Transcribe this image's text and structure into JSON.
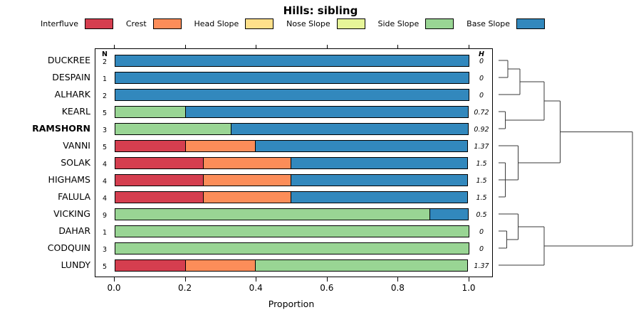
{
  "chart_data": {
    "type": "stacked-bar-horizontal",
    "title": "Hills: sibling",
    "xlabel": "Proportion",
    "xlim": [
      0,
      1
    ],
    "x_ticks": [
      "0.0",
      "0.2",
      "0.4",
      "0.6",
      "0.8",
      "1.0"
    ],
    "n_header": "N",
    "h_header": "H",
    "categories": [
      "Interfluve",
      "Crest",
      "Head Slope",
      "Nose Slope",
      "Side Slope",
      "Base Slope"
    ],
    "legend": [
      {
        "label": "Interfluve",
        "color": "#d53e4f"
      },
      {
        "label": "Crest",
        "color": "#fc8d59"
      },
      {
        "label": "Head Slope",
        "color": "#fee08b"
      },
      {
        "label": "Nose Slope",
        "color": "#e6f598"
      },
      {
        "label": "Side Slope",
        "color": "#99d594"
      },
      {
        "label": "Base Slope",
        "color": "#3288bd"
      }
    ],
    "rows": [
      {
        "label": "DUCKREE",
        "bold": false,
        "n": "2",
        "h": "0",
        "segments": {
          "Base Slope": 1.0
        }
      },
      {
        "label": "DESPAIN",
        "bold": false,
        "n": "1",
        "h": "0",
        "segments": {
          "Base Slope": 1.0
        }
      },
      {
        "label": "ALHARK",
        "bold": false,
        "n": "2",
        "h": "0",
        "segments": {
          "Base Slope": 1.0
        }
      },
      {
        "label": "KEARL",
        "bold": false,
        "n": "5",
        "h": "0.72",
        "segments": {
          "Side Slope": 0.2,
          "Base Slope": 0.8
        }
      },
      {
        "label": "RAMSHORN",
        "bold": true,
        "n": "3",
        "h": "0.92",
        "segments": {
          "Side Slope": 0.33,
          "Base Slope": 0.67
        }
      },
      {
        "label": "VANNI",
        "bold": false,
        "n": "5",
        "h": "1.37",
        "segments": {
          "Interfluve": 0.2,
          "Crest": 0.2,
          "Base Slope": 0.6
        }
      },
      {
        "label": "SOLAK",
        "bold": false,
        "n": "4",
        "h": "1.5",
        "segments": {
          "Interfluve": 0.25,
          "Crest": 0.25,
          "Base Slope": 0.5
        }
      },
      {
        "label": "HIGHAMS",
        "bold": false,
        "n": "4",
        "h": "1.5",
        "segments": {
          "Interfluve": 0.25,
          "Crest": 0.25,
          "Base Slope": 0.5
        }
      },
      {
        "label": "FALULA",
        "bold": false,
        "n": "4",
        "h": "1.5",
        "segments": {
          "Interfluve": 0.25,
          "Crest": 0.25,
          "Base Slope": 0.5
        }
      },
      {
        "label": "VICKING",
        "bold": false,
        "n": "9",
        "h": "0.5",
        "segments": {
          "Side Slope": 0.89,
          "Base Slope": 0.11
        }
      },
      {
        "label": "DAHAR",
        "bold": false,
        "n": "1",
        "h": "0",
        "segments": {
          "Side Slope": 1.0
        }
      },
      {
        "label": "CODQUIN",
        "bold": false,
        "n": "3",
        "h": "0",
        "segments": {
          "Side Slope": 1.0
        }
      },
      {
        "label": "LUNDY",
        "bold": false,
        "n": "5",
        "h": "1.37",
        "segments": {
          "Interfluve": 0.2,
          "Crest": 0.2,
          "Side Slope": 0.6
        }
      }
    ],
    "dendrogram": {
      "height": 1.0,
      "children": [
        {
          "height": 0.46,
          "children": [
            {
              "height": 0.34,
              "children": [
                {
                  "height": 0.16,
                  "children": [
                    {
                      "height": 0.07,
                      "children": [
                        {
                          "leaf": "DUCKREE"
                        },
                        {
                          "leaf": "DESPAIN"
                        }
                      ]
                    },
                    {
                      "leaf": "ALHARK"
                    }
                  ]
                },
                {
                  "height": 0.05,
                  "children": [
                    {
                      "leaf": "KEARL"
                    },
                    {
                      "leaf": "RAMSHORN"
                    }
                  ]
                }
              ]
            },
            {
              "height": 0.145,
              "children": [
                {
                  "leaf": "VANNI"
                },
                {
                  "height": 0.05,
                  "children": [
                    {
                      "leaf": "SOLAK"
                    },
                    {
                      "leaf": "HIGHAMS"
                    },
                    {
                      "leaf": "FALULA"
                    }
                  ]
                }
              ]
            }
          ]
        },
        {
          "height": 0.34,
          "children": [
            {
              "height": 0.145,
              "children": [
                {
                  "leaf": "VICKING"
                },
                {
                  "height": 0.06,
                  "children": [
                    {
                      "leaf": "DAHAR"
                    },
                    {
                      "leaf": "CODQUIN"
                    }
                  ]
                }
              ]
            },
            {
              "leaf": "LUNDY"
            }
          ]
        }
      ]
    }
  }
}
